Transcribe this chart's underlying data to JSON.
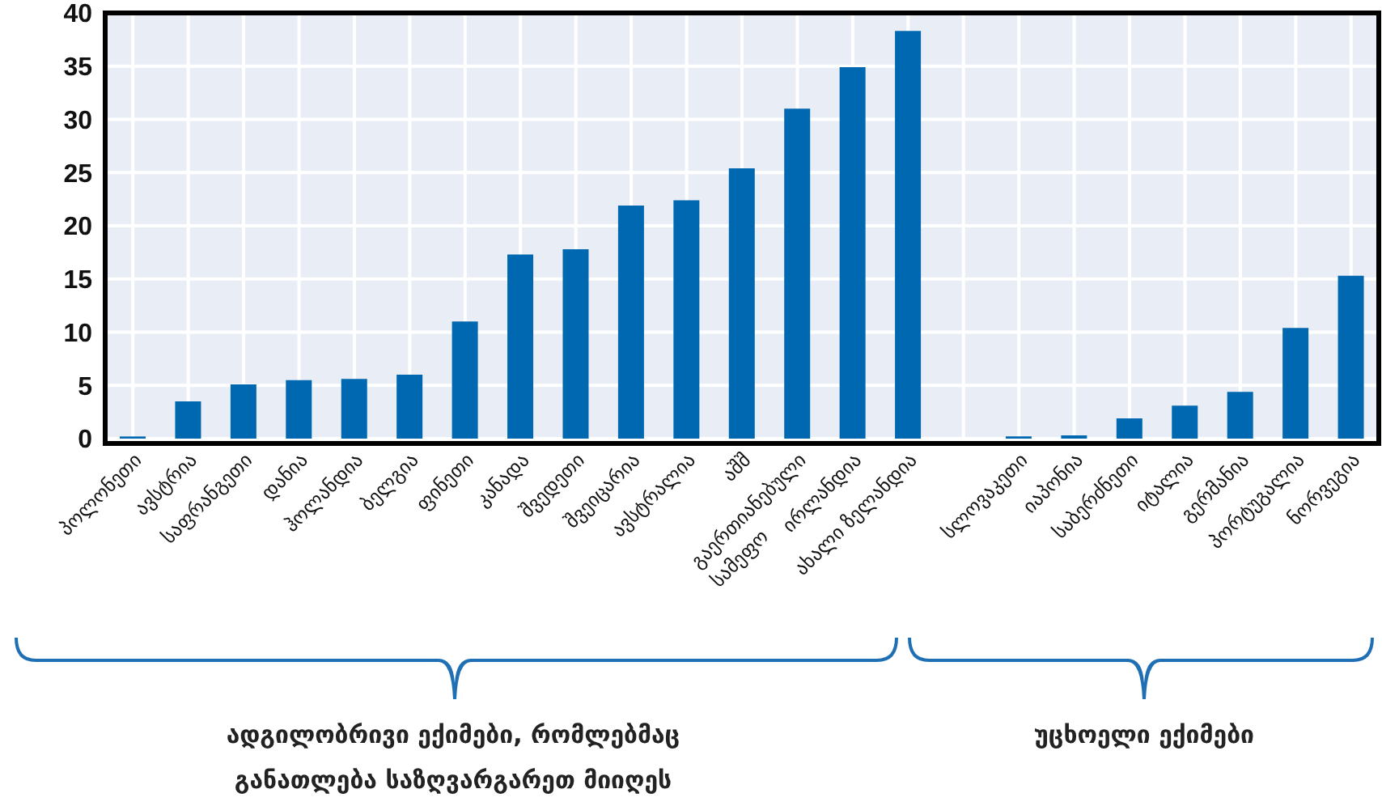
{
  "chart_data": {
    "type": "bar",
    "categories": [
      "პოლონეთი",
      "ავსტრია",
      "საფრანგეთი",
      "დანია",
      "ჰოლანდია",
      "ბელგია",
      "ფინეთი",
      "კანადა",
      "შვედეთი",
      "შვეიცარია",
      "ავსტრალია",
      "აშშ",
      "გაერთიანებული სამეფო",
      "ირლანდია",
      "ახალი ზელანდია",
      null,
      "სლოვაკეთი",
      "იაპონია",
      "საბერძნეთი",
      "იტალია",
      "გერმანია",
      "პორტუგალია",
      "ნორვეგია"
    ],
    "values": [
      0.2,
      3.5,
      5.1,
      5.5,
      5.6,
      6.0,
      11.0,
      17.3,
      17.8,
      21.9,
      22.4,
      25.4,
      31.0,
      34.9,
      38.3,
      null,
      0.2,
      0.3,
      1.9,
      3.1,
      4.4,
      10.4,
      15.3
    ],
    "color": "#0068b0",
    "ylim": [
      0,
      40
    ],
    "yticks": [
      0,
      5,
      10,
      15,
      20,
      25,
      30,
      35,
      40
    ],
    "grid": true,
    "annotations": [
      "ადგილობრივი ექიმები, რომლებმაც განათლება საზღვარგარეთ მიიღეს",
      "უცხოელი ექიმები"
    ]
  }
}
